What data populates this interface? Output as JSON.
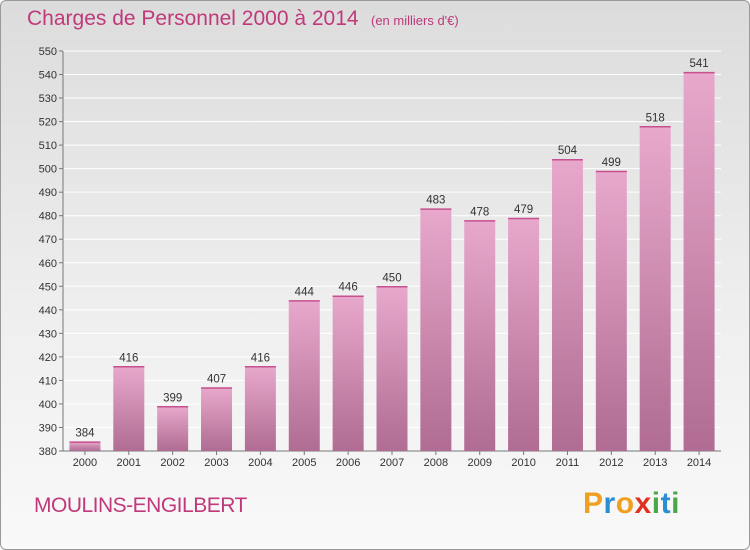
{
  "header": {
    "title": "Charges de Personnel 2000 à 2014",
    "subtitle": "(en milliers d'€)"
  },
  "footer": {
    "place": "MOULINS-ENGILBERT",
    "logo": "Proxiti"
  },
  "colors": {
    "title": "#c0397a",
    "bar_top": "#e8a8cc",
    "bar_bottom": "#b06c92",
    "grid": "#ffffff",
    "logo_letters": [
      "#f0a020",
      "#2a8fd0",
      "#f0a020",
      "#e03020",
      "#4aa84a",
      "#2a8fd0",
      "#4aa84a"
    ]
  },
  "chart_data": {
    "type": "bar",
    "categories": [
      "2000",
      "2001",
      "2002",
      "2003",
      "2004",
      "2005",
      "2006",
      "2007",
      "2008",
      "2009",
      "2010",
      "2011",
      "2012",
      "2013",
      "2014"
    ],
    "values": [
      384,
      416,
      399,
      407,
      416,
      444,
      446,
      450,
      483,
      478,
      479,
      504,
      499,
      518,
      541
    ],
    "ylim": [
      380,
      550
    ],
    "yticks": [
      380,
      390,
      400,
      410,
      420,
      430,
      440,
      450,
      460,
      470,
      480,
      490,
      500,
      510,
      520,
      530,
      540,
      550
    ],
    "grid": true,
    "data_labels": true
  }
}
